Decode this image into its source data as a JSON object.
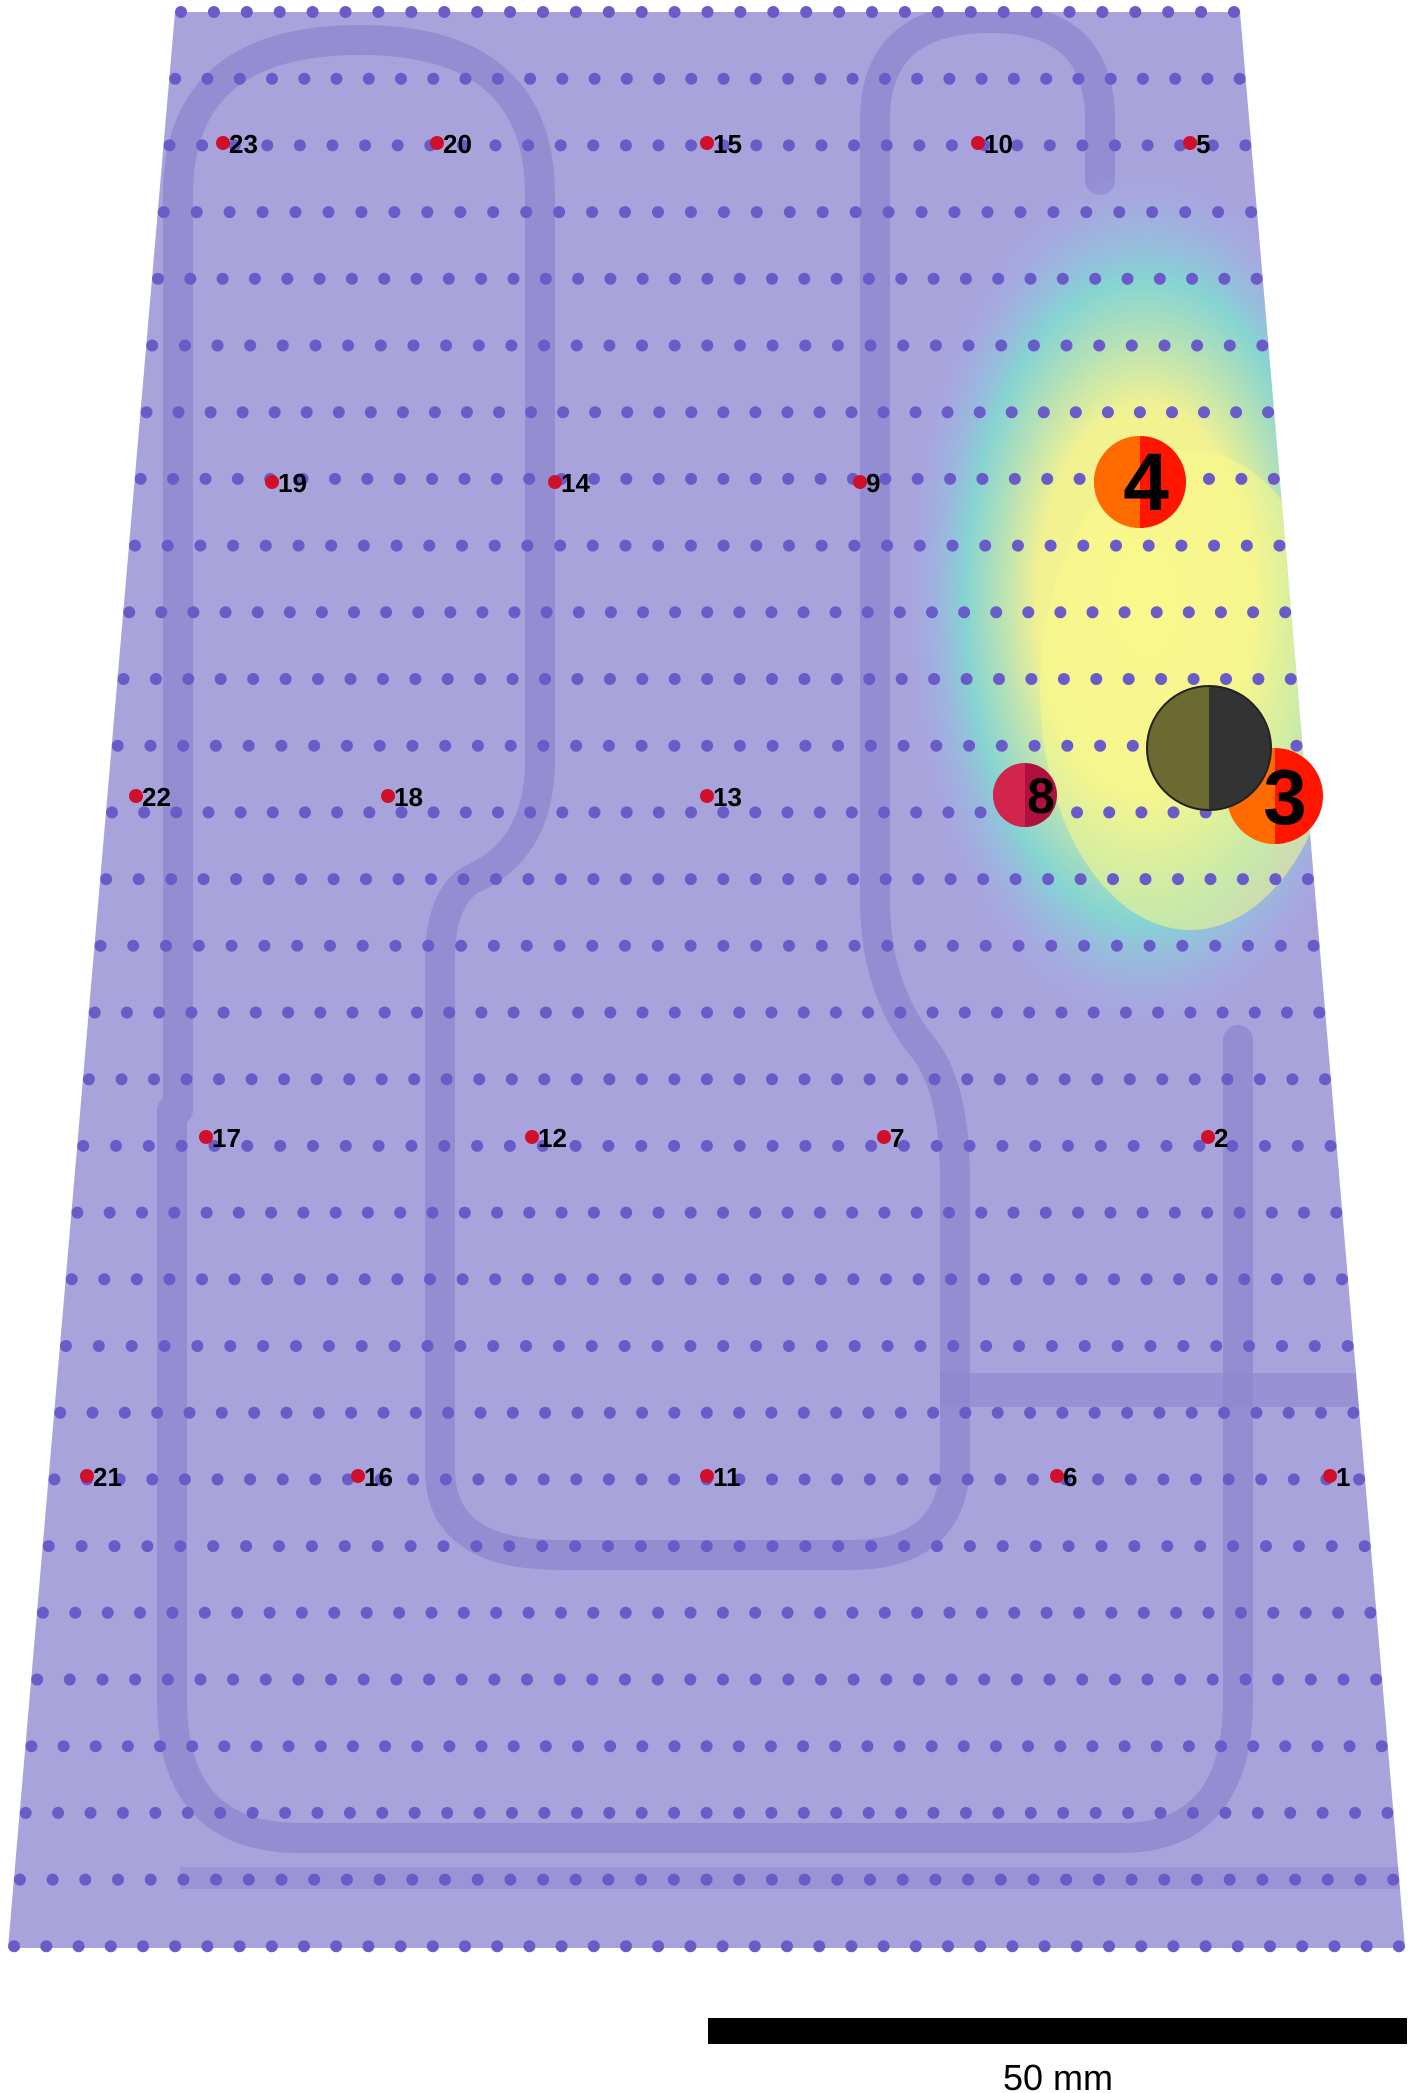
{
  "colors": {
    "panel_fill": "#a9a3dc",
    "grid_dot": "#6a5cc8",
    "sensor_dot": "#d0102a",
    "trace": "#8f86cf",
    "heat_low": "#9fb4f5",
    "heat_mid": "#7de0d0",
    "heat_high": "#fafa8a",
    "hot_red": "#ff1500",
    "hot_orange": "#ff7a00",
    "centroid_dark": "#333333",
    "centroid_olive": "#6b6a30",
    "scale_bar": "#000000"
  },
  "sensors": [
    {
      "label": "1"
    },
    {
      "label": "2"
    },
    {
      "label": "3"
    },
    {
      "label": "4"
    },
    {
      "label": "5"
    },
    {
      "label": "6"
    },
    {
      "label": "7"
    },
    {
      "label": "8"
    },
    {
      "label": "9"
    },
    {
      "label": "10"
    },
    {
      "label": "11"
    },
    {
      "label": "12"
    },
    {
      "label": "13"
    },
    {
      "label": "14"
    },
    {
      "label": "15"
    },
    {
      "label": "16"
    },
    {
      "label": "17"
    },
    {
      "label": "18"
    },
    {
      "label": "19"
    },
    {
      "label": "20"
    },
    {
      "label": "21"
    },
    {
      "label": "22"
    },
    {
      "label": "23"
    }
  ],
  "active_sensors": [
    "3",
    "4",
    "8"
  ],
  "scale_bar": {
    "label": "50 mm"
  }
}
